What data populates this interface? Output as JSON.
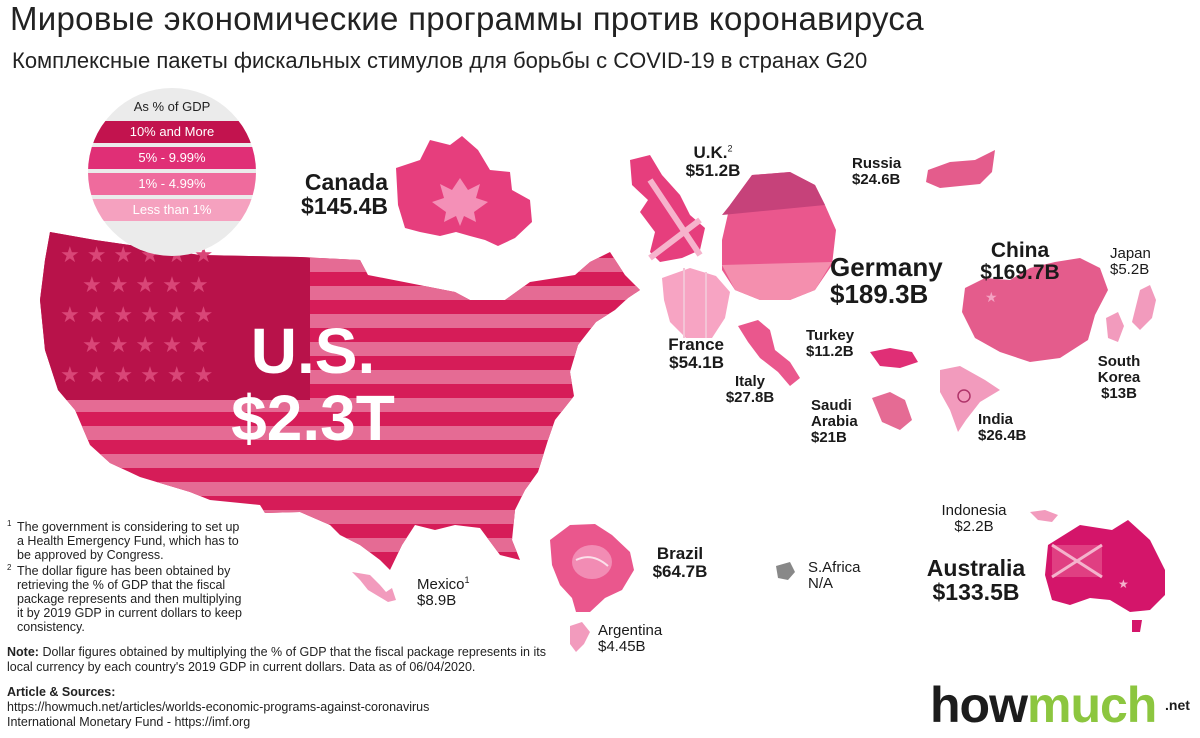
{
  "header": {
    "title": "Мировые экономические программы против коронавируса",
    "subtitle": "Комплексные пакеты фискальных стимулов для борьбы с COVID-19 в странах G20"
  },
  "legend": {
    "header": "As % of GDP",
    "items": [
      {
        "label": "10% and More",
        "color": "#c2134e"
      },
      {
        "label": "5% - 9.99%",
        "color": "#e02f76"
      },
      {
        "label": "1% - 4.99%",
        "color": "#ef6b9d"
      },
      {
        "label": "Less than 1%",
        "color": "#f5a1bf"
      }
    ]
  },
  "countries": {
    "us": {
      "name": "U.S.",
      "value": "$2.3T"
    },
    "canada": {
      "name": "Canada",
      "value": "$145.4B"
    },
    "uk": {
      "name": "U.K.",
      "sup": "2",
      "value": "$51.2B"
    },
    "russia": {
      "name": "Russia",
      "value": "$24.6B"
    },
    "germany": {
      "name": "Germany",
      "value": "$189.3B"
    },
    "china": {
      "name": "China",
      "value": "$169.7B"
    },
    "japan": {
      "name": "Japan",
      "value": "$5.2B"
    },
    "france": {
      "name": "France",
      "value": "$54.1B"
    },
    "turkey": {
      "name": "Turkey",
      "value": "$11.2B"
    },
    "italy": {
      "name": "Italy",
      "value": "$27.8B"
    },
    "south_korea": {
      "name1": "South",
      "name2": "Korea",
      "value": "$13B"
    },
    "saudi_arabia": {
      "name1": "Saudi",
      "name2": "Arabia",
      "value": "$21B"
    },
    "india": {
      "name": "India",
      "value": "$26.4B"
    },
    "indonesia": {
      "name": "Indonesia",
      "value": "$2.2B"
    },
    "australia": {
      "name": "Australia",
      "value": "$133.5B"
    },
    "brazil": {
      "name": "Brazil",
      "value": "$64.7B"
    },
    "south_africa": {
      "name": "S.Africa",
      "value": "N/A"
    },
    "mexico": {
      "name": "Mexico",
      "sup": "1",
      "value": "$8.9B"
    },
    "argentina": {
      "name": "Argentina",
      "value": "$4.45B"
    }
  },
  "footnotes": [
    {
      "mark": "1",
      "text": "The government is considering to set up a Health Emergency Fund, which has to be approved by Congress."
    },
    {
      "mark": "2",
      "text": "The dollar figure has been obtained by retrieving the % of GDP that the fiscal package represents and then multiplying it by 2019 GDP in current dollars to keep consistency."
    }
  ],
  "note": {
    "label": "Note:",
    "text": "Dollar figures obtained by multiplying the % of GDP that the fiscal package represents in its local currency by each country's 2019 GDP in current dollars. Data as of 06/04/2020."
  },
  "sources": {
    "label": "Article & Sources:",
    "lines": [
      "https://howmuch.net/articles/worlds-economic-programs-against-coronavirus",
      "International Monetary Fund - https://imf.org"
    ]
  },
  "brand": {
    "part1": "how",
    "part2": "much",
    "suffix": ".net"
  }
}
